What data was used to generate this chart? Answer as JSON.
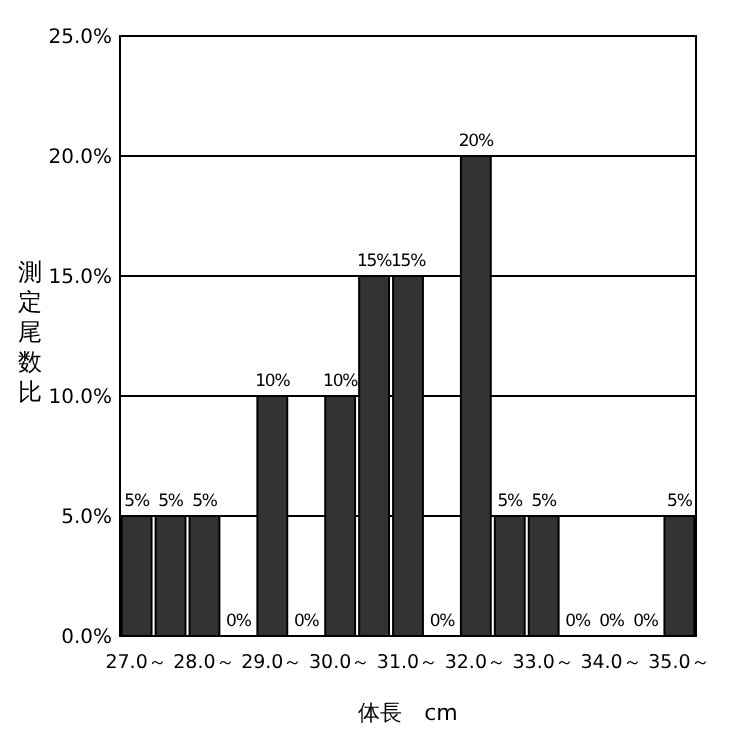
{
  "chart_data": {
    "type": "bar",
    "xlabel": "体長　cm",
    "ylabel": "測定尾数比",
    "categories": [
      "27.0～",
      null,
      "28.0～",
      null,
      "29.0～",
      null,
      "30.0～",
      null,
      "31.0～",
      null,
      "32.0～",
      null,
      "33.0～",
      null,
      "34.0～",
      null,
      "35.0～"
    ],
    "values": [
      5,
      5,
      5,
      0,
      10,
      0,
      10,
      15,
      15,
      0,
      20,
      5,
      5,
      0,
      0,
      0,
      5
    ],
    "value_labels": [
      "5%",
      "5%",
      "5%",
      "0%",
      "10%",
      "0%",
      "10%",
      "15%",
      "15%",
      "0%",
      "20%",
      "5%",
      "5%",
      "0%",
      "0%",
      "0%",
      "5%"
    ],
    "color": "#333333",
    "ylim": [
      0,
      25
    ],
    "yticks": [
      {
        "value": 0,
        "label": "0.0%"
      },
      {
        "value": 5,
        "label": "5.0%"
      },
      {
        "value": 10,
        "label": "10.0%"
      },
      {
        "value": 15,
        "label": "15.0%"
      },
      {
        "value": 20,
        "label": "20.0%"
      },
      {
        "value": 25,
        "label": "25.0%"
      }
    ],
    "grid": "y"
  }
}
